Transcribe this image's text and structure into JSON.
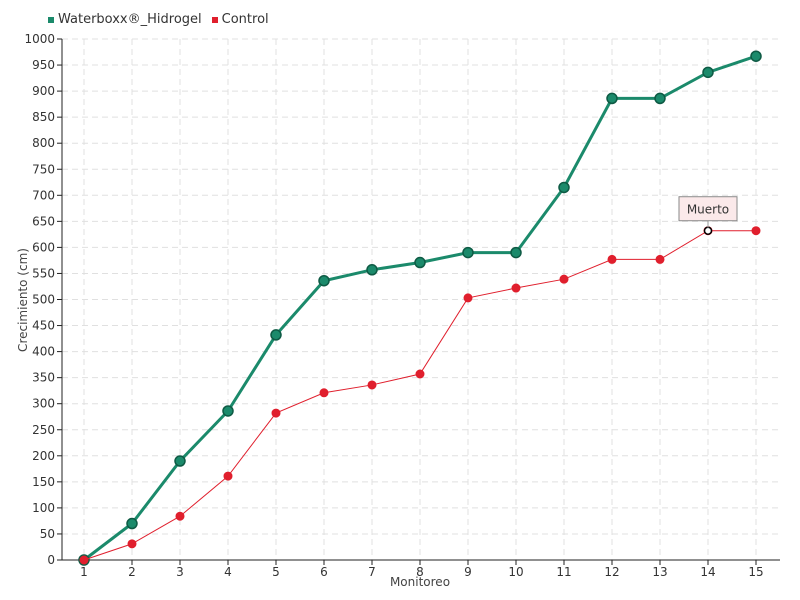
{
  "chart_data": {
    "type": "line",
    "categories": [
      "1",
      "2",
      "3",
      "4",
      "5",
      "6",
      "7",
      "8",
      "9",
      "10",
      "11",
      "12",
      "13",
      "14",
      "15"
    ],
    "xlabel": "Monitoreo",
    "ylabel": "Crecimiento (cm)",
    "ylim": [
      0,
      1000
    ],
    "yticks": [
      0,
      50,
      100,
      150,
      200,
      250,
      300,
      350,
      400,
      450,
      500,
      550,
      600,
      650,
      700,
      750,
      800,
      850,
      900,
      950,
      1000
    ],
    "grid": true,
    "legend_position": "top-left",
    "series": [
      {
        "name": "Waterboxx®_Hidrogel",
        "color": "#1b8a6b",
        "values": [
          0,
          70,
          190,
          286,
          432,
          536,
          557,
          571,
          590,
          590,
          715,
          886,
          886,
          936,
          967
        ]
      },
      {
        "name": "Control",
        "color": "#e01f2d",
        "values": [
          0,
          31,
          84,
          161,
          282,
          321,
          336,
          357,
          503,
          522,
          539,
          577,
          577,
          632,
          632
        ]
      }
    ],
    "annotations": [
      {
        "label": "Muerto",
        "series": 1,
        "index": 13
      }
    ]
  }
}
